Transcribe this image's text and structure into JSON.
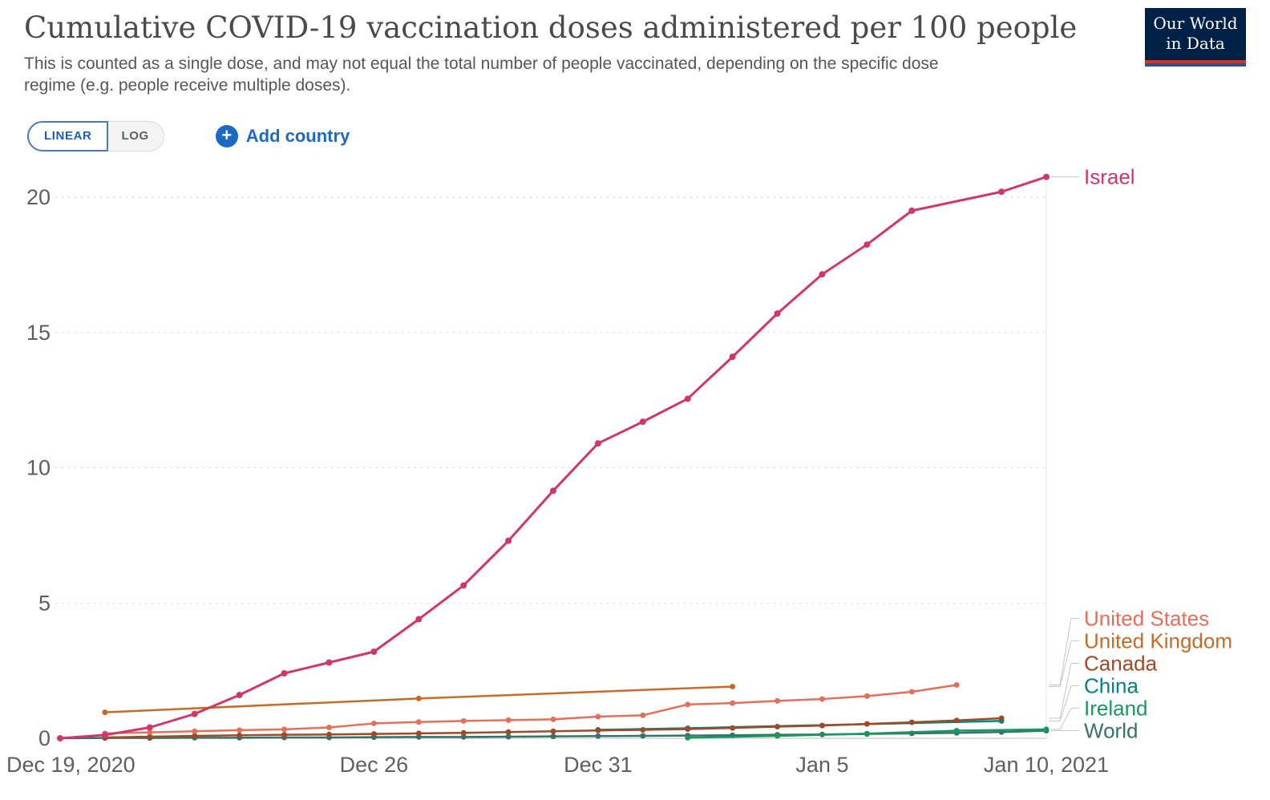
{
  "header": {
    "title": "Cumulative COVID-19 vaccination doses administered per 100 people",
    "subtitle": "This is counted as a single dose, and may not equal the total number of people vaccinated, depending on the specific dose regime (e.g. people receive multiple doses).",
    "logo": {
      "line1": "Our World",
      "line2": "in Data"
    }
  },
  "controls": {
    "linear_label": "LINEAR",
    "log_label": "LOG",
    "add_country_label": "Add country"
  },
  "chart_data": {
    "type": "line",
    "title": "Cumulative COVID-19 vaccination doses administered per 100 people",
    "xlabel": "",
    "ylabel": "",
    "grid": "horizontal-dashed",
    "legend_position": "right-end-labels",
    "x_axis": {
      "unit": "days since Dec 19, 2020",
      "range": [
        0,
        22
      ],
      "ticks": [
        {
          "day": 0,
          "label": "Dec 19, 2020"
        },
        {
          "day": 7,
          "label": "Dec 26"
        },
        {
          "day": 12,
          "label": "Dec 31"
        },
        {
          "day": 17,
          "label": "Jan 5"
        },
        {
          "day": 22,
          "label": "Jan 10, 2021"
        }
      ]
    },
    "y_axis": {
      "range": [
        0,
        20
      ],
      "ticks": [
        0,
        5,
        10,
        15,
        20
      ]
    },
    "series": [
      {
        "name": "World",
        "color": "#35726b",
        "points": [
          [
            0,
            0
          ],
          [
            1,
            0.01
          ],
          [
            2,
            0.01
          ],
          [
            3,
            0.02
          ],
          [
            4,
            0.02
          ],
          [
            5,
            0.03
          ],
          [
            6,
            0.03
          ],
          [
            7,
            0.04
          ],
          [
            8,
            0.05
          ],
          [
            9,
            0.05
          ],
          [
            10,
            0.06
          ],
          [
            11,
            0.07
          ],
          [
            12,
            0.08
          ],
          [
            13,
            0.09
          ],
          [
            14,
            0.1
          ],
          [
            15,
            0.11
          ],
          [
            16,
            0.13
          ],
          [
            17,
            0.14
          ],
          [
            18,
            0.16
          ],
          [
            19,
            0.18
          ],
          [
            20,
            0.2
          ],
          [
            21,
            0.23
          ],
          [
            22,
            0.28
          ]
        ]
      },
      {
        "name": "Ireland",
        "color": "#19975d",
        "points": [
          [
            14,
            0.02
          ],
          [
            16,
            0.09
          ],
          [
            18,
            0.17
          ],
          [
            20,
            0.28
          ],
          [
            22,
            0.33
          ]
        ]
      },
      {
        "name": "China",
        "color": "#00847e",
        "points": [
          [
            12,
            0.31
          ],
          [
            14,
            0.37
          ],
          [
            21,
            0.64
          ]
        ]
      },
      {
        "name": "Canada",
        "color": "#9e4a26",
        "points": [
          [
            1,
            0.03
          ],
          [
            2,
            0.06
          ],
          [
            3,
            0.09
          ],
          [
            4,
            0.11
          ],
          [
            5,
            0.13
          ],
          [
            6,
            0.14
          ],
          [
            7,
            0.16
          ],
          [
            8,
            0.18
          ],
          [
            9,
            0.2
          ],
          [
            10,
            0.23
          ],
          [
            11,
            0.26
          ],
          [
            12,
            0.29
          ],
          [
            13,
            0.31
          ],
          [
            14,
            0.34
          ],
          [
            15,
            0.38
          ],
          [
            16,
            0.43
          ],
          [
            17,
            0.47
          ],
          [
            18,
            0.53
          ],
          [
            19,
            0.59
          ],
          [
            20,
            0.66
          ],
          [
            21,
            0.74
          ]
        ]
      },
      {
        "name": "United Kingdom",
        "color": "#c46b27",
        "points": [
          [
            1,
            0.96
          ],
          [
            8,
            1.47
          ],
          [
            15,
            1.91
          ]
        ]
      },
      {
        "name": "United States",
        "color": "#e56e5a",
        "points": [
          [
            1,
            0.18
          ],
          [
            2,
            0.22
          ],
          [
            3,
            0.26
          ],
          [
            4,
            0.3
          ],
          [
            5,
            0.33
          ],
          [
            6,
            0.4
          ],
          [
            7,
            0.55
          ],
          [
            8,
            0.6
          ],
          [
            9,
            0.64
          ],
          [
            10,
            0.67
          ],
          [
            11,
            0.7
          ],
          [
            12,
            0.8
          ],
          [
            13,
            0.85
          ],
          [
            14,
            1.25
          ],
          [
            15,
            1.3
          ],
          [
            16,
            1.38
          ],
          [
            17,
            1.45
          ],
          [
            18,
            1.56
          ],
          [
            19,
            1.72
          ],
          [
            20,
            1.97
          ]
        ]
      },
      {
        "name": "Israel",
        "color": "#d0366c",
        "points": [
          [
            0,
            0
          ],
          [
            1,
            0.12
          ],
          [
            2,
            0.4
          ],
          [
            3,
            0.9
          ],
          [
            4,
            1.6
          ],
          [
            5,
            2.4
          ],
          [
            6,
            2.8
          ],
          [
            7,
            3.2
          ],
          [
            8,
            4.4
          ],
          [
            9,
            5.65
          ],
          [
            10,
            7.3
          ],
          [
            11,
            9.15
          ],
          [
            12,
            10.9
          ],
          [
            13,
            11.7
          ],
          [
            14,
            12.55
          ],
          [
            15,
            14.1
          ],
          [
            16,
            15.7
          ],
          [
            17,
            17.15
          ],
          [
            18,
            18.25
          ],
          [
            19,
            19.5
          ],
          [
            21,
            20.2
          ],
          [
            22,
            20.75
          ]
        ]
      }
    ]
  }
}
